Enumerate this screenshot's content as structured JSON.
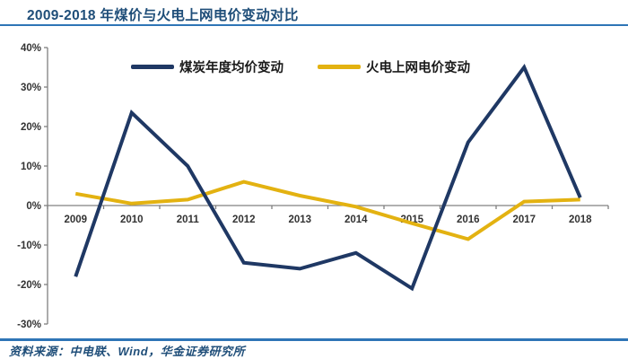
{
  "header": {
    "title": "2009-2018 年煤价与火电上网电价变动对比"
  },
  "footer": {
    "source": "资料来源：中电联、Wind，华金证券研究所"
  },
  "colors": {
    "heading": "#1F4E79",
    "rule": "#2E75B6",
    "axis": "#808080",
    "coal": "#1F3864",
    "tariff": "#E3B211"
  },
  "chart_data": {
    "type": "line",
    "title": "2009-2018 年煤价与火电上网电价变动对比",
    "categories": [
      "2009",
      "2010",
      "2011",
      "2012",
      "2013",
      "2014",
      "2015",
      "2016",
      "2017",
      "2018"
    ],
    "series": [
      {
        "name": "煤炭年度均价变动",
        "color_key": "coal",
        "values": [
          -18,
          23.5,
          10,
          -14.5,
          -16,
          -12,
          -21,
          16,
          35,
          2
        ]
      },
      {
        "name": "火电上网电价变动",
        "color_key": "tariff",
        "values": [
          3,
          0.5,
          1.5,
          6,
          2.5,
          -0.3,
          -4.5,
          -8.5,
          1,
          1.5
        ]
      }
    ],
    "ylim": [
      -30,
      40
    ],
    "ytick_step": 10,
    "ytick_unit": "%",
    "legend_position": "top-center",
    "grid": false,
    "xlabel": "",
    "ylabel": ""
  }
}
